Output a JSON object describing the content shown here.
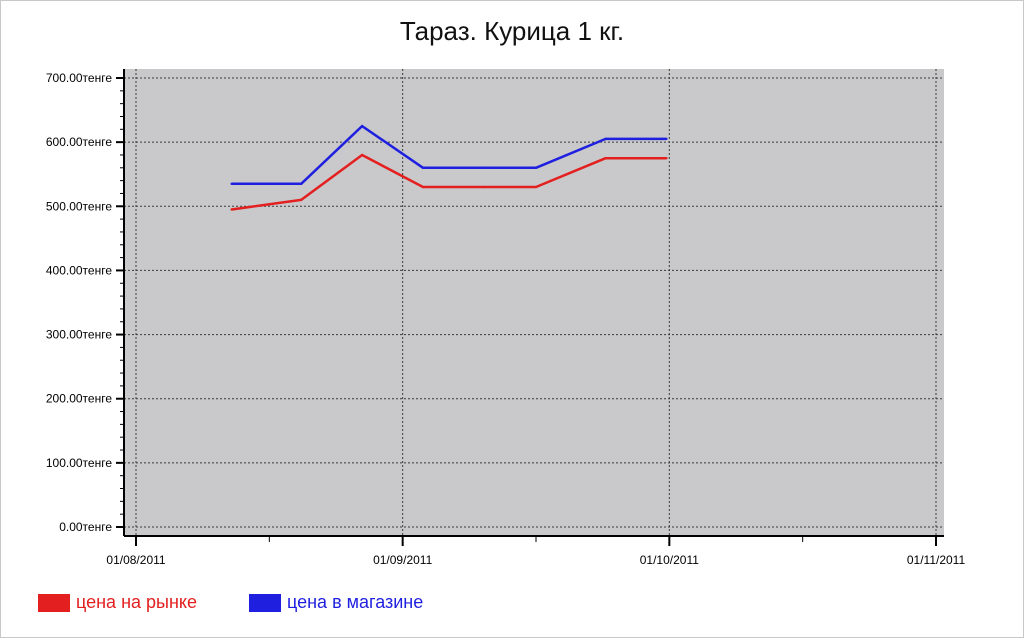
{
  "chart_data": {
    "type": "line",
    "title": "Тараз. Курица 1 кг.",
    "xlabel": "",
    "ylabel": "",
    "y_unit_suffix": "тенге",
    "ylim": [
      0,
      700
    ],
    "y_ticks": [
      "0.00тенге",
      "100.00тенге",
      "200.00тенге",
      "300.00тенге",
      "400.00тенге",
      "500.00тенге",
      "600.00тенге",
      "700.00тенге"
    ],
    "xlim": [
      "2011-08-01",
      "2011-11-01"
    ],
    "x_ticks": [
      "01/08/2011",
      "01/09/2011",
      "01/10/2011",
      "01/11/2011"
    ],
    "grid": true,
    "legend_position": "bottom-left",
    "series": [
      {
        "name": "цена на рынке",
        "color": "#e3201f",
        "x": [
          "2011-08-12",
          "2011-08-20",
          "2011-08-27",
          "2011-09-03",
          "2011-09-10",
          "2011-09-16",
          "2011-09-24",
          "2011-10-01"
        ],
        "values": [
          495,
          510,
          580,
          530,
          530,
          530,
          575,
          575
        ]
      },
      {
        "name": "цена в магазине",
        "color": "#1f1fe0",
        "x": [
          "2011-08-12",
          "2011-08-20",
          "2011-08-27",
          "2011-09-03",
          "2011-09-10",
          "2011-09-16",
          "2011-09-24",
          "2011-10-01"
        ],
        "values": [
          535,
          535,
          625,
          560,
          560,
          560,
          605,
          605
        ]
      }
    ]
  }
}
